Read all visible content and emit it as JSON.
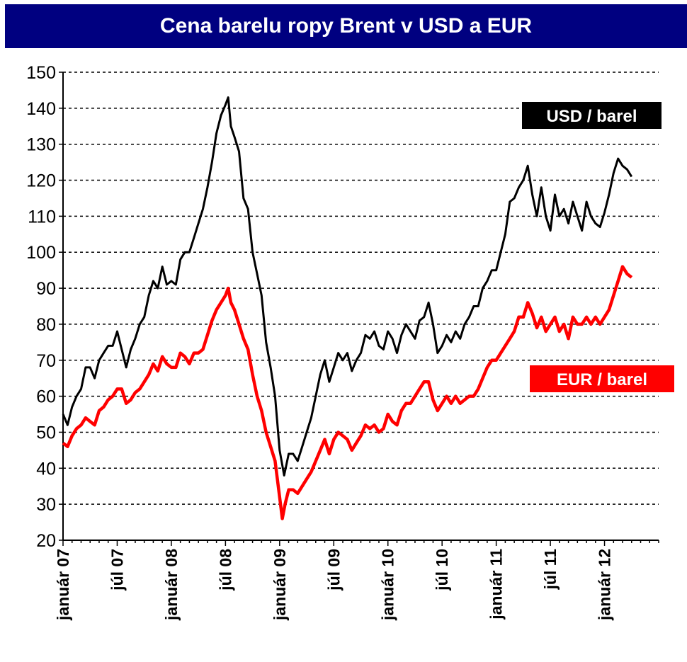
{
  "chart_data": {
    "type": "line",
    "title": "Cena barelu ropy Brent v USD a EUR",
    "xlabel": "",
    "ylabel": "",
    "ylim": [
      20,
      150
    ],
    "yticks": [
      20,
      30,
      40,
      50,
      60,
      70,
      80,
      90,
      100,
      110,
      120,
      130,
      140,
      150
    ],
    "xlim": [
      0,
      66
    ],
    "xticks": [
      {
        "label": "január 07",
        "x": 0
      },
      {
        "label": "júl 07",
        "x": 6
      },
      {
        "label": "január 08",
        "x": 12
      },
      {
        "label": "júl 08",
        "x": 18
      },
      {
        "label": "január 09",
        "x": 24
      },
      {
        "label": "júl 09",
        "x": 30
      },
      {
        "label": "január 10",
        "x": 36
      },
      {
        "label": "júl 10",
        "x": 42
      },
      {
        "label": "január 11",
        "x": 48
      },
      {
        "label": "júl 11",
        "x": 54
      },
      {
        "label": "január 12",
        "x": 60
      }
    ],
    "grid": true,
    "legend_position": "right",
    "series": [
      {
        "name": "USD / barel",
        "color": "#000000",
        "points": [
          [
            0,
            55
          ],
          [
            0.5,
            52
          ],
          [
            1,
            57
          ],
          [
            1.5,
            60
          ],
          [
            2,
            62
          ],
          [
            2.5,
            68
          ],
          [
            3,
            68
          ],
          [
            3.5,
            65
          ],
          [
            4,
            70
          ],
          [
            4.5,
            72
          ],
          [
            5,
            74
          ],
          [
            5.5,
            74
          ],
          [
            6,
            78
          ],
          [
            6.5,
            73
          ],
          [
            7,
            68
          ],
          [
            7.5,
            73
          ],
          [
            8,
            76
          ],
          [
            8.5,
            80
          ],
          [
            9,
            82
          ],
          [
            9.5,
            88
          ],
          [
            10,
            92
          ],
          [
            10.5,
            90
          ],
          [
            11,
            96
          ],
          [
            11.5,
            91
          ],
          [
            12,
            92
          ],
          [
            12.5,
            91
          ],
          [
            13,
            98
          ],
          [
            13.5,
            100
          ],
          [
            14,
            100
          ],
          [
            14.5,
            104
          ],
          [
            15,
            108
          ],
          [
            15.5,
            112
          ],
          [
            16,
            118
          ],
          [
            16.5,
            125
          ],
          [
            17,
            133
          ],
          [
            17.5,
            138
          ],
          [
            18,
            141
          ],
          [
            18.3,
            143
          ],
          [
            18.6,
            135
          ],
          [
            19,
            132
          ],
          [
            19.5,
            128
          ],
          [
            20,
            115
          ],
          [
            20.5,
            112
          ],
          [
            21,
            100
          ],
          [
            21.5,
            94
          ],
          [
            22,
            88
          ],
          [
            22.5,
            75
          ],
          [
            23,
            68
          ],
          [
            23.5,
            60
          ],
          [
            24,
            45
          ],
          [
            24.5,
            38
          ],
          [
            25,
            44
          ],
          [
            25.5,
            44
          ],
          [
            26,
            42
          ],
          [
            26.5,
            46
          ],
          [
            27,
            50
          ],
          [
            27.5,
            54
          ],
          [
            28,
            60
          ],
          [
            28.5,
            66
          ],
          [
            29,
            70
          ],
          [
            29.5,
            64
          ],
          [
            30,
            68
          ],
          [
            30.5,
            72
          ],
          [
            31,
            70
          ],
          [
            31.5,
            72
          ],
          [
            32,
            67
          ],
          [
            32.5,
            70
          ],
          [
            33,
            72
          ],
          [
            33.5,
            77
          ],
          [
            34,
            76
          ],
          [
            34.5,
            78
          ],
          [
            35,
            74
          ],
          [
            35.5,
            73
          ],
          [
            36,
            78
          ],
          [
            36.5,
            76
          ],
          [
            37,
            72
          ],
          [
            37.5,
            77
          ],
          [
            38,
            80
          ],
          [
            38.5,
            78
          ],
          [
            39,
            76
          ],
          [
            39.5,
            81
          ],
          [
            40,
            82
          ],
          [
            40.5,
            86
          ],
          [
            41,
            80
          ],
          [
            41.5,
            72
          ],
          [
            42,
            74
          ],
          [
            42.5,
            77
          ],
          [
            43,
            75
          ],
          [
            43.5,
            78
          ],
          [
            44,
            76
          ],
          [
            44.5,
            80
          ],
          [
            45,
            82
          ],
          [
            45.5,
            85
          ],
          [
            46,
            85
          ],
          [
            46.5,
            90
          ],
          [
            47,
            92
          ],
          [
            47.5,
            95
          ],
          [
            48,
            95
          ],
          [
            48.5,
            100
          ],
          [
            49,
            105
          ],
          [
            49.5,
            114
          ],
          [
            50,
            115
          ],
          [
            50.5,
            118
          ],
          [
            51,
            120
          ],
          [
            51.5,
            124
          ],
          [
            52,
            116
          ],
          [
            52.5,
            110
          ],
          [
            53,
            118
          ],
          [
            53.5,
            110
          ],
          [
            54,
            106
          ],
          [
            54.5,
            116
          ],
          [
            55,
            110
          ],
          [
            55.5,
            112
          ],
          [
            56,
            108
          ],
          [
            56.5,
            114
          ],
          [
            57,
            110
          ],
          [
            57.5,
            106
          ],
          [
            58,
            114
          ],
          [
            58.5,
            110
          ],
          [
            59,
            108
          ],
          [
            59.5,
            107
          ],
          [
            60,
            111
          ],
          [
            60.5,
            116
          ],
          [
            61,
            122
          ],
          [
            61.5,
            126
          ],
          [
            62,
            124
          ],
          [
            62.5,
            123
          ],
          [
            63,
            121
          ]
        ]
      },
      {
        "name": "EUR / barel",
        "color": "#ff0000",
        "points": [
          [
            0,
            47
          ],
          [
            0.5,
            46
          ],
          [
            1,
            49
          ],
          [
            1.5,
            51
          ],
          [
            2,
            52
          ],
          [
            2.5,
            54
          ],
          [
            3,
            53
          ],
          [
            3.5,
            52
          ],
          [
            4,
            56
          ],
          [
            4.5,
            57
          ],
          [
            5,
            59
          ],
          [
            5.5,
            60
          ],
          [
            6,
            62
          ],
          [
            6.5,
            62
          ],
          [
            7,
            58
          ],
          [
            7.5,
            59
          ],
          [
            8,
            61
          ],
          [
            8.5,
            62
          ],
          [
            9,
            64
          ],
          [
            9.5,
            66
          ],
          [
            10,
            69
          ],
          [
            10.5,
            67
          ],
          [
            11,
            71
          ],
          [
            11.5,
            69
          ],
          [
            12,
            68
          ],
          [
            12.5,
            68
          ],
          [
            13,
            72
          ],
          [
            13.5,
            71
          ],
          [
            14,
            69
          ],
          [
            14.5,
            72
          ],
          [
            15,
            72
          ],
          [
            15.5,
            73
          ],
          [
            16,
            77
          ],
          [
            16.5,
            81
          ],
          [
            17,
            84
          ],
          [
            17.5,
            86
          ],
          [
            18,
            88
          ],
          [
            18.3,
            90
          ],
          [
            18.6,
            86
          ],
          [
            19,
            84
          ],
          [
            19.5,
            80
          ],
          [
            20,
            76
          ],
          [
            20.5,
            73
          ],
          [
            21,
            66
          ],
          [
            21.5,
            60
          ],
          [
            22,
            56
          ],
          [
            22.5,
            50
          ],
          [
            23,
            46
          ],
          [
            23.5,
            42
          ],
          [
            24,
            32
          ],
          [
            24.3,
            26
          ],
          [
            24.6,
            30
          ],
          [
            25,
            34
          ],
          [
            25.5,
            34
          ],
          [
            26,
            33
          ],
          [
            26.5,
            35
          ],
          [
            27,
            37
          ],
          [
            27.5,
            39
          ],
          [
            28,
            42
          ],
          [
            28.5,
            45
          ],
          [
            29,
            48
          ],
          [
            29.5,
            44
          ],
          [
            30,
            48
          ],
          [
            30.5,
            50
          ],
          [
            31,
            49
          ],
          [
            31.5,
            48
          ],
          [
            32,
            45
          ],
          [
            32.5,
            47
          ],
          [
            33,
            49
          ],
          [
            33.5,
            52
          ],
          [
            34,
            51
          ],
          [
            34.5,
            52
          ],
          [
            35,
            50
          ],
          [
            35.5,
            51
          ],
          [
            36,
            55
          ],
          [
            36.5,
            53
          ],
          [
            37,
            52
          ],
          [
            37.5,
            56
          ],
          [
            38,
            58
          ],
          [
            38.5,
            58
          ],
          [
            39,
            60
          ],
          [
            39.5,
            62
          ],
          [
            40,
            64
          ],
          [
            40.5,
            64
          ],
          [
            41,
            59
          ],
          [
            41.5,
            56
          ],
          [
            42,
            58
          ],
          [
            42.5,
            60
          ],
          [
            43,
            58
          ],
          [
            43.5,
            60
          ],
          [
            44,
            58
          ],
          [
            44.5,
            59
          ],
          [
            45,
            60
          ],
          [
            45.5,
            60
          ],
          [
            46,
            62
          ],
          [
            46.5,
            65
          ],
          [
            47,
            68
          ],
          [
            47.5,
            70
          ],
          [
            48,
            70
          ],
          [
            48.5,
            72
          ],
          [
            49,
            74
          ],
          [
            49.5,
            76
          ],
          [
            50,
            78
          ],
          [
            50.5,
            82
          ],
          [
            51,
            82
          ],
          [
            51.5,
            86
          ],
          [
            52,
            83
          ],
          [
            52.5,
            79
          ],
          [
            53,
            82
          ],
          [
            53.5,
            78
          ],
          [
            54,
            80
          ],
          [
            54.5,
            82
          ],
          [
            55,
            78
          ],
          [
            55.5,
            80
          ],
          [
            56,
            76
          ],
          [
            56.5,
            82
          ],
          [
            57,
            80
          ],
          [
            57.5,
            80
          ],
          [
            58,
            82
          ],
          [
            58.5,
            80
          ],
          [
            59,
            82
          ],
          [
            59.5,
            80
          ],
          [
            60,
            82
          ],
          [
            60.5,
            84
          ],
          [
            61,
            88
          ],
          [
            61.5,
            92
          ],
          [
            62,
            96
          ],
          [
            62.5,
            94
          ],
          [
            63,
            93
          ]
        ]
      }
    ]
  }
}
